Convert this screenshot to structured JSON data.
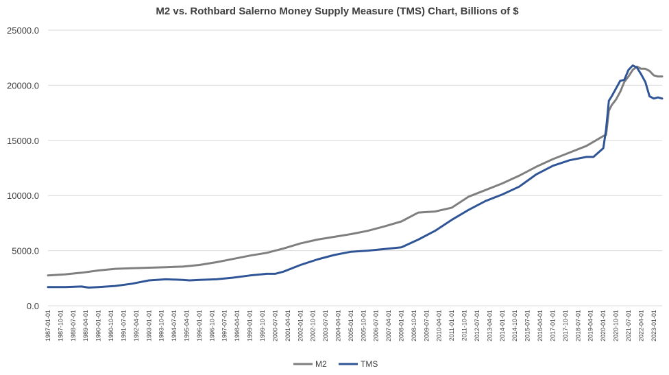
{
  "chart_data": {
    "type": "line",
    "title": "M2 vs. Rothbard Salerno Money Supply Measure (TMS) Chart, Billions of $",
    "xlabel": "",
    "ylabel": "",
    "ylim": [
      0,
      25000
    ],
    "y_ticks": [
      "0.0",
      "5000.0",
      "10000.0",
      "15000.0",
      "20000.0",
      "25000.0"
    ],
    "y_tick_values": [
      0,
      5000,
      10000,
      15000,
      20000,
      25000
    ],
    "grid": true,
    "legend_position": "bottom",
    "x_ticks": [
      "1987-01-01",
      "1987-10-01",
      "1988-07-01",
      "1989-04-01",
      "1990-01-01",
      "1990-10-01",
      "1991-07-01",
      "1992-04-01",
      "1993-01-01",
      "1993-10-01",
      "1994-07-01",
      "1995-04-01",
      "1996-01-01",
      "1996-10-01",
      "1997-07-01",
      "1998-04-01",
      "1999-01-01",
      "1999-10-01",
      "2000-07-01",
      "2001-04-01",
      "2002-01-01",
      "2002-10-01",
      "2003-07-01",
      "2004-04-01",
      "2005-01-01",
      "2005-10-01",
      "2006-07-01",
      "2007-04-01",
      "2008-01-01",
      "2008-10-01",
      "2009-07-01",
      "2010-04-01",
      "2011-01-01",
      "2011-10-01",
      "2012-07-01",
      "2013-04-01",
      "2014-01-01",
      "2014-10-01",
      "2015-07-01",
      "2016-04-01",
      "2017-01-01",
      "2017-10-01",
      "2018-07-01",
      "2019-04-01",
      "2020-01-01",
      "2020-10-01",
      "2021-07-01",
      "2022-04-01",
      "2023-01-01"
    ],
    "x_range": [
      "1987-01-01",
      "2023-07-01"
    ],
    "series": [
      {
        "name": "M2",
        "color": "#7f7f7f",
        "x": [
          "1987-01-01",
          "1988-01-01",
          "1989-01-01",
          "1990-01-01",
          "1991-01-01",
          "1992-01-01",
          "1993-01-01",
          "1994-01-01",
          "1995-01-01",
          "1996-01-01",
          "1997-01-01",
          "1998-01-01",
          "1999-01-01",
          "2000-01-01",
          "2001-01-01",
          "2002-01-01",
          "2003-01-01",
          "2004-01-01",
          "2005-01-01",
          "2006-01-01",
          "2007-01-01",
          "2008-01-01",
          "2009-01-01",
          "2010-01-01",
          "2011-01-01",
          "2012-01-01",
          "2013-01-01",
          "2014-01-01",
          "2015-01-01",
          "2016-01-01",
          "2017-01-01",
          "2018-01-01",
          "2019-01-01",
          "2020-01-01",
          "2020-03-01",
          "2020-05-01",
          "2020-07-01",
          "2020-10-01",
          "2021-01-01",
          "2021-04-01",
          "2021-07-01",
          "2021-10-01",
          "2022-01-01",
          "2022-04-01",
          "2022-07-01",
          "2022-10-01",
          "2023-01-01",
          "2023-04-01",
          "2023-07-01"
        ],
        "values": [
          2750,
          2850,
          3000,
          3200,
          3350,
          3400,
          3450,
          3500,
          3550,
          3700,
          3950,
          4250,
          4550,
          4800,
          5200,
          5650,
          6000,
          6250,
          6500,
          6800,
          7200,
          7650,
          8450,
          8550,
          8900,
          9900,
          10500,
          11100,
          11800,
          12600,
          13300,
          13900,
          14500,
          15400,
          15500,
          17700,
          18200,
          18700,
          19400,
          20300,
          20800,
          21400,
          21700,
          21500,
          21500,
          21300,
          20900,
          20800,
          20800
        ]
      },
      {
        "name": "TMS",
        "color": "#2f5597",
        "x": [
          "1987-01-01",
          "1988-01-01",
          "1989-01-01",
          "1989-06-01",
          "1990-01-01",
          "1991-01-01",
          "1992-01-01",
          "1993-01-01",
          "1994-01-01",
          "1995-01-01",
          "1995-06-01",
          "1996-01-01",
          "1997-01-01",
          "1998-01-01",
          "1999-01-01",
          "2000-01-01",
          "2000-07-01",
          "2001-01-01",
          "2002-01-01",
          "2003-01-01",
          "2004-01-01",
          "2005-01-01",
          "2006-01-01",
          "2007-01-01",
          "2008-01-01",
          "2009-01-01",
          "2010-01-01",
          "2011-01-01",
          "2012-01-01",
          "2013-01-01",
          "2014-01-01",
          "2015-01-01",
          "2016-01-01",
          "2017-01-01",
          "2018-01-01",
          "2019-01-01",
          "2019-06-01",
          "2020-01-01",
          "2020-03-01",
          "2020-05-01",
          "2020-07-01",
          "2020-10-01",
          "2021-01-01",
          "2021-04-01",
          "2021-07-01",
          "2021-10-01",
          "2022-01-01",
          "2022-04-01",
          "2022-07-01",
          "2022-10-01",
          "2023-01-01",
          "2023-04-01",
          "2023-07-01"
        ],
        "values": [
          1700,
          1700,
          1750,
          1650,
          1700,
          1800,
          2000,
          2300,
          2400,
          2350,
          2300,
          2350,
          2400,
          2550,
          2750,
          2900,
          2900,
          3100,
          3700,
          4200,
          4600,
          4900,
          5000,
          5150,
          5300,
          6000,
          6800,
          7800,
          8700,
          9500,
          10100,
          10800,
          11900,
          12700,
          13200,
          13500,
          13500,
          14300,
          16000,
          18600,
          19000,
          19700,
          20400,
          20500,
          21400,
          21800,
          21600,
          21000,
          20300,
          19000,
          18800,
          18900,
          18800
        ]
      }
    ]
  }
}
